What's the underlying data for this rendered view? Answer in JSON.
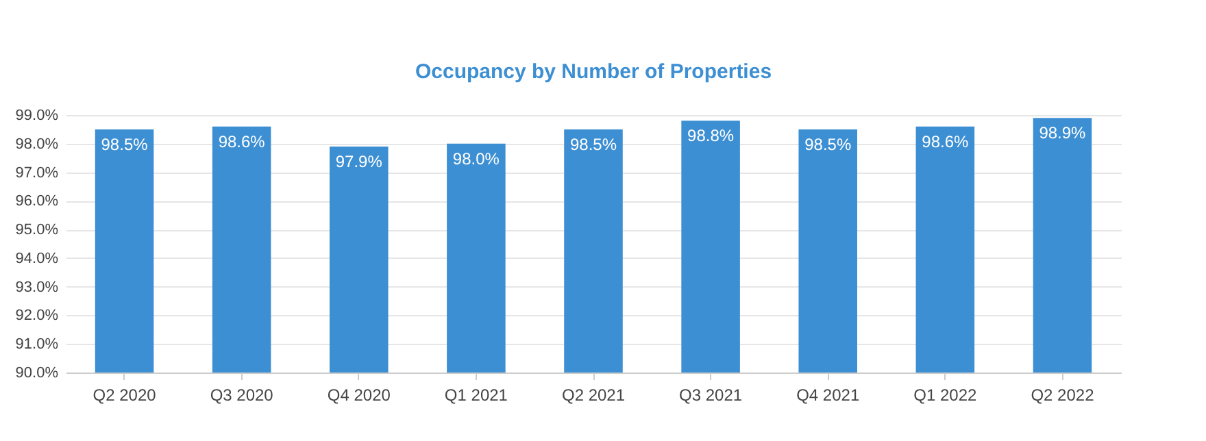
{
  "chart_data": {
    "type": "bar",
    "title": "Occupancy by Number of Properties",
    "categories": [
      "Q2 2020",
      "Q3 2020",
      "Q4 2020",
      "Q1 2021",
      "Q2 2021",
      "Q3 2021",
      "Q4 2021",
      "Q1 2022",
      "Q2 2022"
    ],
    "values": [
      98.5,
      98.6,
      97.9,
      98.0,
      98.5,
      98.8,
      98.5,
      98.6,
      98.9
    ],
    "value_labels": [
      "98.5%",
      "98.6%",
      "97.9%",
      "98.0%",
      "98.5%",
      "98.8%",
      "98.5%",
      "98.6%",
      "98.9%"
    ],
    "color": "#3d8fd3",
    "ylim": [
      90,
      99
    ],
    "yticks": [
      {
        "value": 90,
        "label": "90.0%"
      },
      {
        "value": 91,
        "label": "91.0%"
      },
      {
        "value": 92,
        "label": "92.0%"
      },
      {
        "value": 93,
        "label": "93.0%"
      },
      {
        "value": 94,
        "label": "94.0%"
      },
      {
        "value": 95,
        "label": "95.0%"
      },
      {
        "value": 96,
        "label": "96.0%"
      },
      {
        "value": 97,
        "label": "97.0%"
      },
      {
        "value": 98,
        "label": "98.0%"
      },
      {
        "value": 99,
        "label": "99.0%"
      }
    ],
    "grid": "y"
  }
}
